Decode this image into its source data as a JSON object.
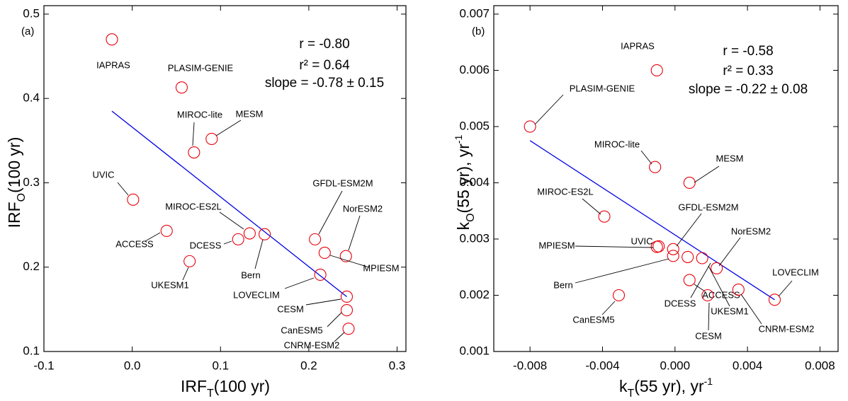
{
  "chart_data": [
    {
      "type": "scatter",
      "panel_label": "(a)",
      "x_label": [
        "IRF",
        "T",
        "(100 yr)"
      ],
      "y_label": [
        "IRF",
        "O",
        "(100 yr)"
      ],
      "annotations": [
        "r = -0.80",
        "r² = 0.64",
        "slope = -0.78 ± 0.15"
      ],
      "labels": [
        "IAPRAS",
        "PLASIM-GENIE",
        "MIROC-lite",
        "MESM",
        "UVIC",
        "MIROC-ES2L",
        "ACCESS",
        "DCESS",
        "Bern",
        "UKESM1",
        "GFDL-ESM2M",
        "NorESM2",
        "MPIESM",
        "LOVECLIM",
        "CESM",
        "CanESM5",
        "CNRM-ESM2"
      ],
      "x": [
        -0.023,
        0.056,
        0.07,
        0.09,
        0.001,
        0.133,
        0.039,
        0.12,
        0.15,
        0.065,
        0.207,
        0.242,
        0.218,
        0.213,
        0.243,
        0.243,
        0.245
      ],
      "y": [
        0.47,
        0.413,
        0.336,
        0.352,
        0.28,
        0.24,
        0.243,
        0.233,
        0.239,
        0.207,
        0.233,
        0.213,
        0.217,
        0.191,
        0.165,
        0.149,
        0.127
      ],
      "color": "#e8000b",
      "fit": {
        "x": [
          -0.023,
          0.243
        ],
        "y": [
          0.385,
          0.165
        ],
        "color": "#0000e6"
      },
      "xlim": [
        -0.1,
        0.31
      ],
      "ylim": [
        0.1,
        0.51
      ],
      "xticks": [
        -0.1,
        {
          "value": 0,
          "label": "0.0"
        },
        0.1,
        0.2,
        0.3
      ],
      "yticks": [
        0.1,
        0.2,
        0.3,
        0.4,
        0.5
      ]
    },
    {
      "type": "scatter",
      "panel_label": "(b)",
      "x_label": [
        "k",
        "T",
        "(55 yr), yr",
        "-1"
      ],
      "y_label": [
        "k",
        "O",
        "(55 yr), yr",
        "-1"
      ],
      "annotations": [
        "r = -0.58",
        "r² = 0.33",
        "slope = -0.22 ± 0.08"
      ],
      "labels": [
        "IAPRAS",
        "PLASIM-GENIE",
        "MIROC-lite",
        "MESM",
        "MIROC-ES2L",
        "UVIC",
        "GFDL-ESM2M",
        "MPIESM",
        "NorESM2",
        "Bern",
        "DCESS",
        "UKESM1",
        "ACCESS",
        "CESM",
        "CNRM-ESM2",
        "LOVECLIM",
        "CanESM5"
      ],
      "x": [
        -0.001,
        -0.008,
        -0.0011,
        0.0008,
        -0.0039,
        -0.0009,
        -0.0001,
        -0.001,
        0.0023,
        -0.0001,
        0.0007,
        0.0015,
        0.0008,
        0.0018,
        0.0035,
        0.0055,
        -0.0031
      ],
      "y": [
        0.006,
        0.005,
        0.00428,
        0.004,
        0.0034,
        0.00287,
        0.00282,
        0.00286,
        0.00248,
        0.0027,
        0.00268,
        0.00266,
        0.00227,
        0.002,
        0.0021,
        0.00192,
        0.002
      ],
      "color": "#e8000b",
      "fit": {
        "x": [
          -0.008,
          0.0055
        ],
        "y": [
          0.00475,
          0.00192
        ],
        "color": "#0000e6"
      },
      "xlim": [
        -0.01,
        0.009
      ],
      "ylim": [
        0.001,
        0.00715
      ],
      "xticks": [
        -0.008,
        -0.004,
        {
          "value": 0,
          "label": "0.000"
        },
        0.004,
        0.008
      ],
      "yticks": [
        0.001,
        0.002,
        0.003,
        0.004,
        0.005,
        0.006,
        0.007
      ]
    }
  ]
}
